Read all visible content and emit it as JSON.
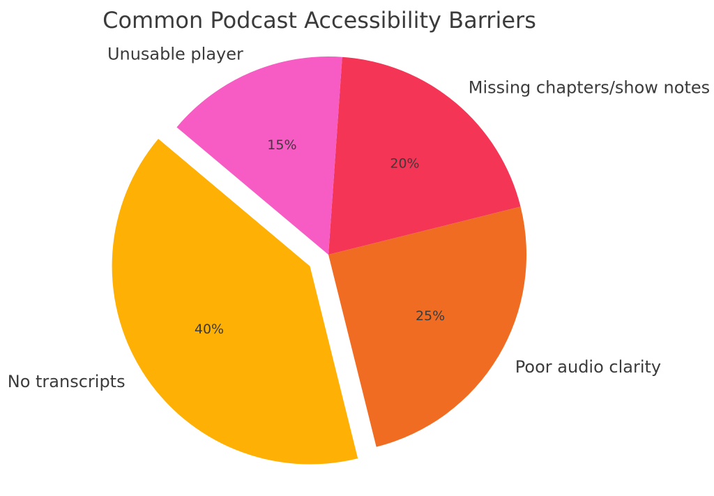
{
  "chart_data": {
    "type": "pie",
    "title": "Common Podcast Accessibility Barriers",
    "categories": [
      "Missing chapters/show notes",
      "Poor audio clarity",
      "No transcripts",
      "Unusable player"
    ],
    "values": [
      20,
      25,
      40,
      15
    ],
    "slices": [
      {
        "label": "Missing chapters/show notes",
        "value": 20,
        "pct_label": "20%",
        "color": "#F43556",
        "exploded": false
      },
      {
        "label": "Poor audio clarity",
        "value": 25,
        "pct_label": "25%",
        "color": "#F16C23",
        "exploded": false
      },
      {
        "label": "No transcripts",
        "value": 40,
        "pct_label": "40%",
        "color": "#FFB005",
        "exploded": true
      },
      {
        "label": "Unusable player",
        "value": 15,
        "pct_label": "15%",
        "color": "#F75BC4",
        "exploded": false
      }
    ],
    "layout": {
      "start_angle": 86,
      "direction": "clockwise",
      "explode_fraction": 0.11,
      "pct_distance": 0.6,
      "label_distance": 1.1,
      "legend": "none",
      "label_position": "outside",
      "pct_position": "inside"
    },
    "text_color": "#3B3B3B",
    "background": "#FFFFFF"
  }
}
